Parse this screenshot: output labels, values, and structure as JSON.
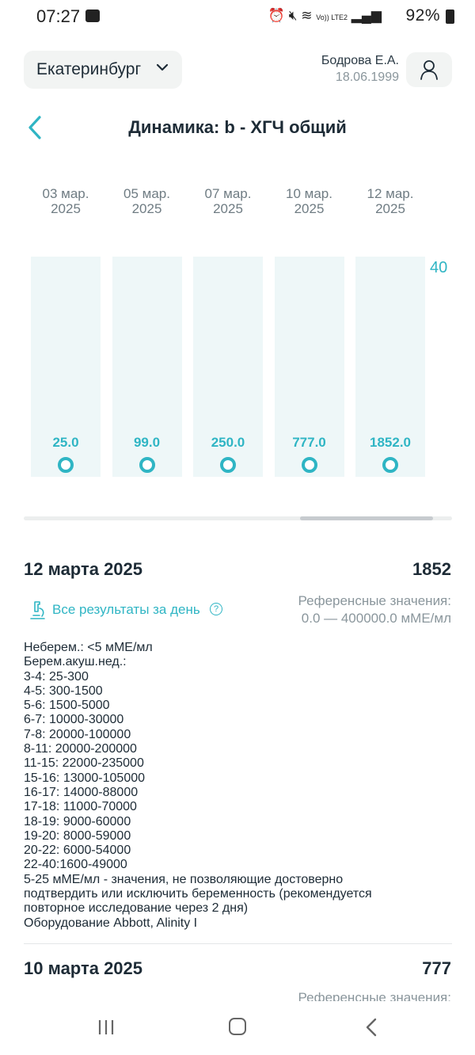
{
  "status_bar": {
    "time": "07:27",
    "network_label": "Vo)) LTE2",
    "battery": "92%"
  },
  "header": {
    "city": "Екатеринбург",
    "user_name": "Бодрова Е.А.",
    "user_dob": "18.06.1999"
  },
  "title": "Динамика: b - ХГЧ общий",
  "chart_data": {
    "type": "bar",
    "categories": [
      "03 мар. 2025",
      "05 мар. 2025",
      "07 мар. 2025",
      "10 мар. 2025",
      "12 мар. 2025"
    ],
    "date_lines": [
      [
        "03 мар.",
        "2025"
      ],
      [
        "05 мар.",
        "2025"
      ],
      [
        "07 мар.",
        "2025"
      ],
      [
        "10 мар.",
        "2025"
      ],
      [
        "12 мар.",
        "2025"
      ]
    ],
    "values": [
      25.0,
      99.0,
      250.0,
      777.0,
      1852.0
    ],
    "value_labels": [
      "25.0",
      "99.0",
      "250.0",
      "777.0",
      "1852.0"
    ],
    "axis_max_label": "40",
    "accent_color": "#2fb5c4"
  },
  "result": {
    "date": "12 марта 2025",
    "value": "1852",
    "all_results_label": "Все результаты за день",
    "help_badge": "?",
    "ref_title": "Референсные значения:",
    "ref_range": "0.0 — 400000.0 мМЕ/мл",
    "notes": [
      "Неберем.: <5 мМЕ/мл",
      "Берем.акуш.нед.:",
      "3-4: 25-300",
      "4-5: 300-1500",
      "5-6: 1500-5000",
      "6-7: 10000-30000",
      "7-8: 20000-100000",
      "8-11: 20000-200000",
      "11-15: 22000-235000",
      "15-16: 13000-105000",
      "16-17: 14000-88000",
      "17-18: 11000-70000",
      "18-19: 9000-60000",
      "19-20: 8000-59000",
      "20-22: 6000-54000",
      "22-40:1600-49000",
      "5-25 мМЕ/мл - значения, не позволяющие достоверно",
      "подтвердить или исключить беременность (рекомендуется",
      "повторное исследование через 2 дня)",
      "Оборудование Abbott, Alinity I"
    ]
  },
  "result2": {
    "date": "10 марта 2025",
    "value": "777",
    "ref_title": "Референсные значения:"
  }
}
